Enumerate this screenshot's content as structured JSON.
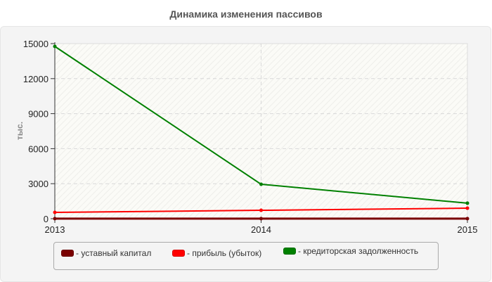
{
  "title": "Динамика изменения пассивов",
  "chart_data": {
    "type": "line",
    "title": "Динамика изменения пассивов",
    "xlabel": "",
    "ylabel": "тыс.",
    "categories": [
      "2013",
      "2014",
      "2015"
    ],
    "ylim": [
      0,
      15000
    ],
    "yticks": [
      0,
      3000,
      6000,
      9000,
      12000,
      15000
    ],
    "grid": true,
    "legend_position": "bottom",
    "series": [
      {
        "name": "уставный капитал",
        "color": "#7a0000",
        "values": [
          10,
          10,
          10
        ]
      },
      {
        "name": "прибыль (убыток)",
        "color": "#ff0000",
        "values": [
          540,
          720,
          900
        ]
      },
      {
        "name": "кредиторская задолженность",
        "color": "#008000",
        "values": [
          14760,
          2950,
          1330
        ]
      }
    ]
  },
  "axis": {
    "y_label": "тыс.",
    "y_ticks": [
      "15000",
      "12000",
      "9000",
      "6000",
      "3000",
      "0"
    ],
    "x_ticks": [
      "2013",
      "2014",
      "2015"
    ]
  },
  "legend": [
    {
      "label": "- уставный капитал",
      "color": "#7a0000"
    },
    {
      "label": "- прибыль (убыток)",
      "color": "#ff0000"
    },
    {
      "label": "- кредиторская задолженность",
      "color": "#008000"
    }
  ]
}
